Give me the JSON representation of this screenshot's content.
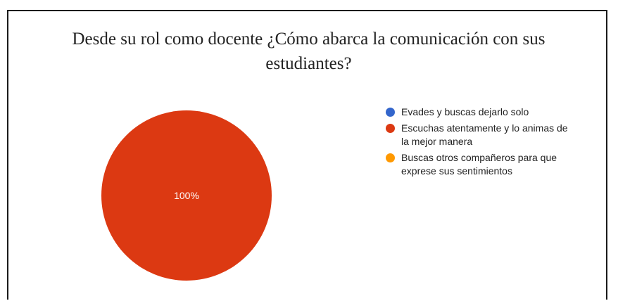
{
  "chart_data": {
    "type": "pie",
    "title": "Desde su rol como docente ¿Cómo abarca la comunicación con sus estudiantes?",
    "title_lines": [
      "Desde su rol como docente ¿Cómo abarca la comunicación con sus",
      "estudiantes?"
    ],
    "legend_position": "right",
    "slices": [
      {
        "label": "Evades y buscas dejarlo solo",
        "label_lines": [
          "Evades y buscas dejarlo solo"
        ],
        "value": 0,
        "color": "#3366cc"
      },
      {
        "label": "Escuchas atentamente y lo animas de la mejor manera",
        "label_lines": [
          "Escuchas atentamente y lo animas de",
          "la mejor manera"
        ],
        "value": 100,
        "color": "#dc3912"
      },
      {
        "label": "Buscas otros compañeros para que exprese sus sentimientos",
        "label_lines": [
          "Buscas otros compañeros para que",
          "exprese sus sentimientos"
        ],
        "value": 0,
        "color": "#ff9900"
      }
    ],
    "data_label_suffix": "%"
  }
}
